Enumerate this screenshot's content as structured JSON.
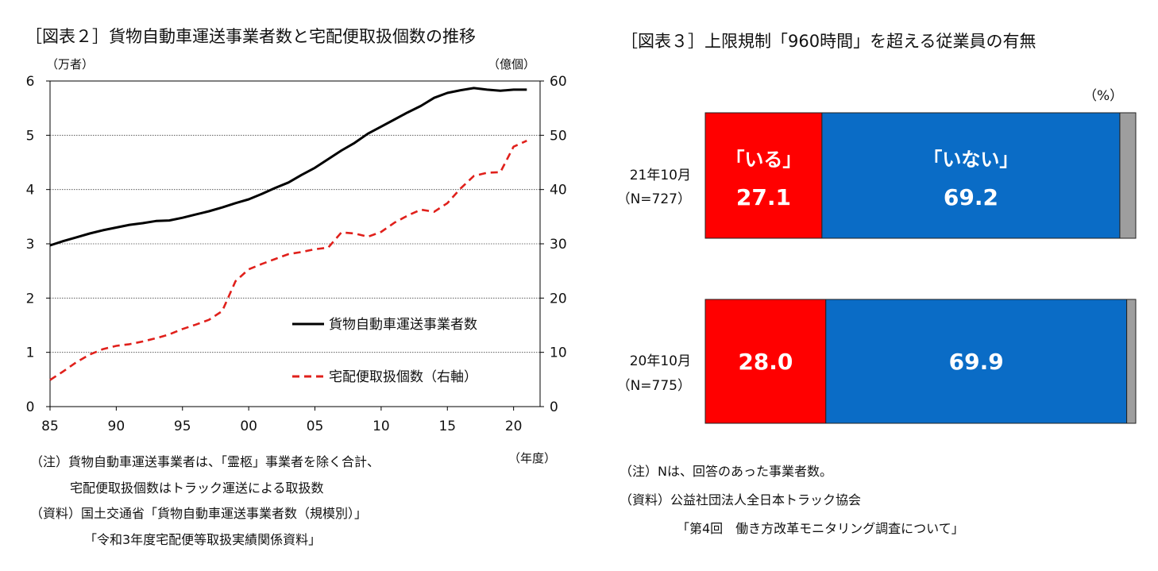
{
  "fig2": {
    "title": "［図表２］貨物自動車運送事業者数と宅配便取扱個数の推移",
    "left_unit": "（万者）",
    "right_unit": "（億個）",
    "x_unit": "（年度）",
    "note_line1": "（注）貨物自動車運送事業者は、「霊柩」事業者を除く合計、",
    "note_line2": "宅配便取扱個数はトラック運送による取扱数",
    "source_line1": "（資料）国土交通省「貨物自動車運送事業者数（規模別）」",
    "source_line2": "「令和3年度宅配便等取扱実績関係資料」"
  },
  "fig3": {
    "title": "［図表３］上限規制「960時間」を超える従業員の有無",
    "unit": "（%）",
    "note": "（注）Nは、回答のあった事業者数。",
    "source_line1": "（資料）公益社団法人全日本トラック協会",
    "source_line2": "「第4回　働き方改革モニタリング調査について」"
  },
  "colors": {
    "line_black": "#000000",
    "line_red": "#e0201b",
    "bar_red": "#ff0000",
    "bar_blue": "#0a6cc6",
    "bar_gray": "#9e9e9e"
  },
  "chart_data": [
    {
      "type": "line",
      "x_tick_labels": [
        "85",
        "90",
        "95",
        "00",
        "05",
        "10",
        "15",
        "20"
      ],
      "y_left_ticks": [
        0,
        1,
        2,
        3,
        4,
        5,
        6
      ],
      "y_right_ticks": [
        0,
        10,
        20,
        30,
        40,
        50,
        60
      ],
      "ylim_left": [
        0,
        6
      ],
      "ylim_right": [
        0,
        60
      ],
      "xlim": [
        1985,
        2022
      ],
      "x": [
        1985,
        1986,
        1987,
        1988,
        1989,
        1990,
        1991,
        1992,
        1993,
        1994,
        1995,
        1996,
        1997,
        1998,
        1999,
        2000,
        2001,
        2002,
        2003,
        2004,
        2005,
        2006,
        2007,
        2008,
        2009,
        2010,
        2011,
        2012,
        2013,
        2014,
        2015,
        2016,
        2017,
        2018,
        2019,
        2020,
        2021
      ],
      "series": [
        {
          "name": "貨物自動車運送事業者数",
          "axis": "left",
          "style": "solid",
          "values": [
            2.97,
            3.05,
            3.12,
            3.19,
            3.25,
            3.3,
            3.35,
            3.38,
            3.42,
            3.43,
            3.48,
            3.54,
            3.6,
            3.67,
            3.75,
            3.82,
            3.92,
            4.03,
            4.13,
            4.27,
            4.4,
            4.56,
            4.72,
            4.86,
            5.03,
            5.16,
            5.29,
            5.42,
            5.54,
            5.69,
            5.78,
            5.83,
            5.87,
            5.84,
            5.82,
            5.84,
            5.84
          ]
        },
        {
          "name": "宅配便取扱個数（右軸）",
          "axis": "right",
          "style": "dashed",
          "values": [
            4.9,
            6.5,
            8.2,
            9.6,
            10.6,
            11.2,
            11.5,
            12.0,
            12.6,
            13.3,
            14.3,
            15.1,
            16.0,
            17.6,
            23.1,
            25.3,
            26.3,
            27.2,
            28.1,
            28.5,
            29.0,
            29.3,
            32.1,
            31.9,
            31.3,
            32.2,
            33.9,
            35.2,
            36.3,
            35.9,
            37.5,
            40.2,
            42.5,
            43.1,
            43.2,
            47.9,
            49.0
          ]
        }
      ]
    },
    {
      "type": "bar",
      "orientation": "horizontal",
      "stacked": true,
      "categories": [
        "21年10月",
        "20年10月"
      ],
      "category_sublabels": [
        "（N=727）",
        "（N=775）"
      ],
      "series": [
        {
          "name": "「いる」",
          "values": [
            27.1,
            28.0
          ]
        },
        {
          "name": "「いない」",
          "values": [
            69.2,
            69.9
          ]
        },
        {
          "name": "",
          "values": [
            3.7,
            2.1
          ]
        }
      ],
      "segment_labels": [
        [
          "27.1",
          "69.2",
          ""
        ],
        [
          "28.0",
          "69.9",
          ""
        ]
      ],
      "header_labels": [
        "「いる」",
        "「いない」",
        ""
      ],
      "xlim": [
        0,
        100
      ]
    }
  ]
}
